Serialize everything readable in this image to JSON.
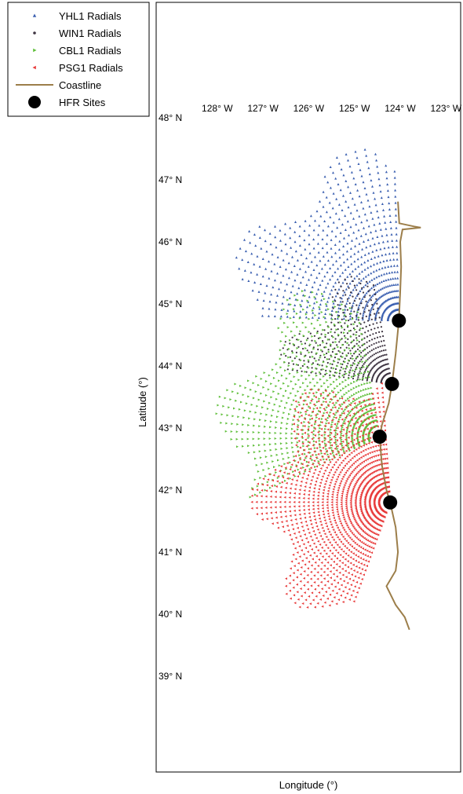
{
  "legend": {
    "items": [
      {
        "label": "YHL1 Radials",
        "color": "#3a5fb0",
        "marker": "triangle-up"
      },
      {
        "label": "WIN1 Radials",
        "color": "#3d3340",
        "marker": "dot"
      },
      {
        "label": "CBL1 Radials",
        "color": "#5fbf3a",
        "marker": "triangle-right"
      },
      {
        "label": "PSG1 Radials",
        "color": "#e83a3a",
        "marker": "triangle-left"
      },
      {
        "label": "Coastline",
        "color": "#9c7e4a",
        "marker": "line"
      },
      {
        "label": "HFR Sites",
        "color": "#000000",
        "marker": "big-dot"
      }
    ]
  },
  "axes": {
    "xlabel": "Longitude (°)",
    "ylabel": "Latitude (°)",
    "lon_ticks": [
      "128° W",
      "127° W",
      "126° W",
      "125° W",
      "124° W",
      "123° W"
    ],
    "lat_ticks": [
      "48° N",
      "47° N",
      "46° N",
      "45° N",
      "44° N",
      "43° N",
      "42° N",
      "41° N",
      "40° N",
      "39° N"
    ]
  },
  "chart_data": {
    "type": "scatter",
    "xlim": [
      -128.8,
      -122.9
    ],
    "ylim": [
      37.9,
      48.3
    ],
    "sites": [
      {
        "name": "YHL1",
        "lon": -124.03,
        "lat": 44.73,
        "color": "#3a5fb0"
      },
      {
        "name": "WIN1",
        "lon": -124.18,
        "lat": 43.71,
        "color": "#3d3340"
      },
      {
        "name": "CBL1",
        "lon": -124.45,
        "lat": 42.86,
        "color": "#5fbf3a"
      },
      {
        "name": "PSG1",
        "lon": -124.22,
        "lat": 41.8,
        "color": "#e83a3a"
      }
    ],
    "coastline": [
      [
        -124.05,
        46.65
      ],
      [
        -124.02,
        46.3
      ],
      [
        -123.7,
        46.25
      ],
      [
        -123.55,
        46.23
      ],
      [
        -123.95,
        46.2
      ],
      [
        -124.0,
        46.0
      ],
      [
        -123.98,
        45.6
      ],
      [
        -124.0,
        45.2
      ],
      [
        -124.03,
        44.73
      ],
      [
        -124.1,
        44.2
      ],
      [
        -124.18,
        43.71
      ],
      [
        -124.25,
        43.4
      ],
      [
        -124.4,
        43.05
      ],
      [
        -124.45,
        42.86
      ],
      [
        -124.4,
        42.4
      ],
      [
        -124.3,
        42.0
      ],
      [
        -124.22,
        41.8
      ],
      [
        -124.1,
        41.4
      ],
      [
        -124.05,
        41.0
      ],
      [
        -124.1,
        40.7
      ],
      [
        -124.3,
        40.45
      ],
      [
        -124.1,
        40.15
      ],
      [
        -123.9,
        39.95
      ],
      [
        -123.8,
        39.75
      ]
    ]
  }
}
